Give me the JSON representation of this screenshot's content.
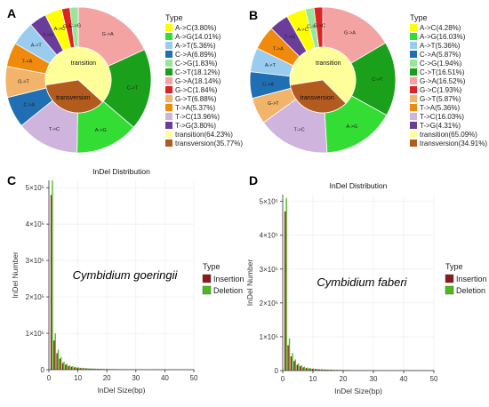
{
  "panels": {
    "A": "A",
    "B": "B",
    "C": "C",
    "D": "D"
  },
  "colors": {
    "A->C": "#ffff00",
    "A->G": "#33dd33",
    "A->T": "#99ccee",
    "C->A": "#1f6fb2",
    "C->G": "#99e699",
    "C->T": "#1aa01a",
    "G->A": "#f4a3a3",
    "G->C": "#dd2222",
    "G->T": "#f2b36b",
    "T->A": "#f08a0c",
    "T->C": "#cfb5de",
    "T->G": "#6a3d9a",
    "transition": "#ffff99",
    "transversion": "#b35a1f",
    "insertion": "#8b1a1a",
    "deletion": "#4cbb17"
  },
  "chart_data": [
    {
      "type": "pie",
      "panel": "A",
      "legend_title": "Type",
      "outer": [
        {
          "label": "G->A",
          "value": 18.14,
          "key": "G->A"
        },
        {
          "label": "C->T",
          "value": 18.12,
          "key": "C->T"
        },
        {
          "label": "A->G",
          "value": 14.01,
          "key": "A->G"
        },
        {
          "label": "T->C",
          "value": 13.96,
          "key": "T->C"
        },
        {
          "label": "C->A",
          "value": 6.89,
          "key": "C->A"
        },
        {
          "label": "G->T",
          "value": 6.88,
          "key": "G->T"
        },
        {
          "label": "T->A",
          "value": 5.37,
          "key": "T->A"
        },
        {
          "label": "A->T",
          "value": 5.36,
          "key": "A->T"
        },
        {
          "label": "T->G",
          "value": 3.8,
          "key": "T->G"
        },
        {
          "label": "A->C",
          "value": 3.8,
          "key": "A->C"
        },
        {
          "label": "G->C",
          "value": 1.84,
          "key": "G->C"
        },
        {
          "label": "C->G",
          "value": 1.83,
          "key": "C->G"
        }
      ],
      "inner": [
        {
          "label": "transition",
          "value": 64.23,
          "key": "transition"
        },
        {
          "label": "transversion",
          "value": 35.77,
          "key": "transversion"
        }
      ],
      "legend": [
        {
          "key": "A->C",
          "text": "A->C(3.80%)"
        },
        {
          "key": "A->G",
          "text": "A->G(14.01%)"
        },
        {
          "key": "A->T",
          "text": "A->T(5.36%)"
        },
        {
          "key": "C->A",
          "text": "C->A(6.89%)"
        },
        {
          "key": "C->G",
          "text": "C->G(1.83%)"
        },
        {
          "key": "C->T",
          "text": "C->T(18.12%)"
        },
        {
          "key": "G->A",
          "text": "G->A(18.14%)"
        },
        {
          "key": "G->C",
          "text": "G->C(1.84%)"
        },
        {
          "key": "G->T",
          "text": "G->T(6.88%)"
        },
        {
          "key": "T->A",
          "text": "T->A(5.37%)"
        },
        {
          "key": "T->C",
          "text": "T->C(13.96%)"
        },
        {
          "key": "T->G",
          "text": "T->G(3.80%)"
        },
        {
          "key": "transition",
          "text": "transition(64.23%)"
        },
        {
          "key": "transversion",
          "text": "transversion(35.77%)"
        }
      ]
    },
    {
      "type": "pie",
      "panel": "B",
      "legend_title": "Type",
      "outer": [
        {
          "label": "G->A",
          "value": 16.52,
          "key": "G->A"
        },
        {
          "label": "C->T",
          "value": 16.51,
          "key": "C->T"
        },
        {
          "label": "A->G",
          "value": 16.03,
          "key": "A->G"
        },
        {
          "label": "T->C",
          "value": 16.03,
          "key": "T->C"
        },
        {
          "label": "G->T",
          "value": 5.87,
          "key": "G->T"
        },
        {
          "label": "C->A",
          "value": 5.87,
          "key": "C->A"
        },
        {
          "label": "A->T",
          "value": 5.36,
          "key": "A->T"
        },
        {
          "label": "T->A",
          "value": 5.36,
          "key": "T->A"
        },
        {
          "label": "T->G",
          "value": 4.31,
          "key": "T->G"
        },
        {
          "label": "A->C",
          "value": 4.28,
          "key": "A->C"
        },
        {
          "label": "C->G",
          "value": 1.94,
          "key": "C->G"
        },
        {
          "label": "G->C",
          "value": 1.93,
          "key": "G->C"
        }
      ],
      "inner": [
        {
          "label": "transition",
          "value": 65.09,
          "key": "transition"
        },
        {
          "label": "transversion",
          "value": 34.91,
          "key": "transversion"
        }
      ],
      "legend": [
        {
          "key": "A->C",
          "text": "A->C(4.28%)"
        },
        {
          "key": "A->G",
          "text": "A->G(16.03%)"
        },
        {
          "key": "A->T",
          "text": "A->T(5.36%)"
        },
        {
          "key": "C->A",
          "text": "C->A(5.87%)"
        },
        {
          "key": "C->G",
          "text": "C->G(1.94%)"
        },
        {
          "key": "C->T",
          "text": "C->T(16.51%)"
        },
        {
          "key": "G->A",
          "text": "G->A(16.52%)"
        },
        {
          "key": "G->C",
          "text": "G->C(1.93%)"
        },
        {
          "key": "G->T",
          "text": "G->T(5.87%)"
        },
        {
          "key": "T->A",
          "text": "T->A(5.36%)"
        },
        {
          "key": "T->C",
          "text": "T->C(16.03%)"
        },
        {
          "key": "T->G",
          "text": "T->G(4.31%)"
        },
        {
          "key": "transition",
          "text": "transition(65.09%)"
        },
        {
          "key": "transversion",
          "text": "transversion(34.91%)"
        }
      ]
    },
    {
      "type": "bar",
      "panel": "C",
      "title": "InDel Distribution",
      "xlabel": "InDel Size(bp)",
      "ylabel": "InDel Number",
      "annotation": "Cymbidium goeringii",
      "legend_title": "Type",
      "xlim": [
        0,
        50
      ],
      "ylim": [
        0,
        520000
      ],
      "x_ticks": [
        0,
        10,
        20,
        30,
        40,
        50
      ],
      "y_ticks": [
        {
          "value": 0,
          "label": "0"
        },
        {
          "value": 100000,
          "label": "1×10⁵"
        },
        {
          "value": 200000,
          "label": "2×10⁵"
        },
        {
          "value": 300000,
          "label": "3×10⁵"
        },
        {
          "value": 400000,
          "label": "4×10⁵"
        },
        {
          "value": 500000,
          "label": "5×10⁵"
        }
      ],
      "x": [
        1,
        2,
        3,
        4,
        5,
        6,
        7,
        8,
        9,
        10,
        11,
        12,
        13,
        14,
        15,
        16,
        17,
        18,
        19,
        20,
        21,
        22,
        23,
        24,
        25,
        26,
        27,
        28,
        29,
        30,
        31,
        32,
        33,
        34,
        35,
        36,
        37,
        38,
        39,
        40,
        41,
        42,
        43,
        44,
        45,
        46,
        47,
        48,
        49,
        50
      ],
      "series": [
        {
          "name": "Insertion",
          "key": "insertion",
          "values": [
            480000,
            80000,
            45000,
            30000,
            18000,
            14000,
            10000,
            8000,
            6500,
            5500,
            4500,
            4000,
            3500,
            3000,
            2800,
            2500,
            2200,
            2000,
            1800,
            1700,
            1600,
            1500,
            1400,
            1300,
            1200,
            1100,
            1000,
            950,
            900,
            850,
            800,
            750,
            700,
            650,
            600,
            600,
            550,
            550,
            500,
            500,
            450,
            450,
            400,
            400,
            380,
            360,
            340,
            320,
            300,
            300
          ]
        },
        {
          "name": "Deletion",
          "key": "deletion",
          "values": [
            520000,
            100000,
            55000,
            35000,
            22000,
            16000,
            12000,
            9500,
            7500,
            6500,
            5200,
            4600,
            4000,
            3500,
            3200,
            2900,
            2600,
            2300,
            2100,
            1900,
            1800,
            1700,
            1600,
            1500,
            1400,
            1300,
            1200,
            1100,
            1050,
            1000,
            950,
            900,
            850,
            800,
            750,
            700,
            680,
            650,
            620,
            600,
            560,
            540,
            520,
            500,
            480,
            460,
            440,
            420,
            400,
            380
          ]
        }
      ]
    },
    {
      "type": "bar",
      "panel": "D",
      "title": "InDel Distribution",
      "xlabel": "InDel Size(bp)",
      "ylabel": "InDel Number",
      "annotation": "Cymbidium faberi",
      "legend_title": "Type",
      "xlim": [
        0,
        50
      ],
      "ylim": [
        0,
        520000
      ],
      "x_ticks": [
        0,
        10,
        20,
        30,
        40,
        50
      ],
      "y_ticks": [
        {
          "value": 0,
          "label": "0"
        },
        {
          "value": 100000,
          "label": "1×10⁵"
        },
        {
          "value": 200000,
          "label": "2×10⁵"
        },
        {
          "value": 300000,
          "label": "3×10⁵"
        },
        {
          "value": 400000,
          "label": "4×10⁵"
        },
        {
          "value": 500000,
          "label": "5×10⁵"
        }
      ],
      "x": [
        1,
        2,
        3,
        4,
        5,
        6,
        7,
        8,
        9,
        10,
        11,
        12,
        13,
        14,
        15,
        16,
        17,
        18,
        19,
        20,
        21,
        22,
        23,
        24,
        25,
        26,
        27,
        28,
        29,
        30,
        31,
        32,
        33,
        34,
        35,
        36,
        37,
        38,
        39,
        40,
        41,
        42,
        43,
        44,
        45,
        46,
        47,
        48,
        49,
        50
      ],
      "series": [
        {
          "name": "Insertion",
          "key": "insertion",
          "values": [
            470000,
            75000,
            42000,
            28000,
            17000,
            13000,
            9500,
            7500,
            6000,
            5200,
            4300,
            3800,
            3300,
            2900,
            2600,
            2400,
            2100,
            1900,
            1750,
            1650,
            1550,
            1450,
            1350,
            1250,
            1150,
            1050,
            980,
            920,
            870,
            820,
            780,
            730,
            680,
            640,
            600,
            580,
            540,
            520,
            490,
            470,
            440,
            420,
            400,
            380,
            360,
            340,
            320,
            300,
            290,
            280
          ]
        },
        {
          "name": "Deletion",
          "key": "deletion",
          "values": [
            510000,
            95000,
            52000,
            33000,
            21000,
            15500,
            11500,
            9000,
            7200,
            6200,
            5000,
            4400,
            3900,
            3400,
            3100,
            2800,
            2500,
            2250,
            2050,
            1850,
            1750,
            1650,
            1550,
            1450,
            1350,
            1250,
            1150,
            1080,
            1020,
            970,
            920,
            870,
            820,
            780,
            740,
            700,
            660,
            630,
            600,
            580,
            550,
            530,
            510,
            490,
            470,
            450,
            430,
            410,
            390,
            370
          ]
        }
      ]
    }
  ]
}
